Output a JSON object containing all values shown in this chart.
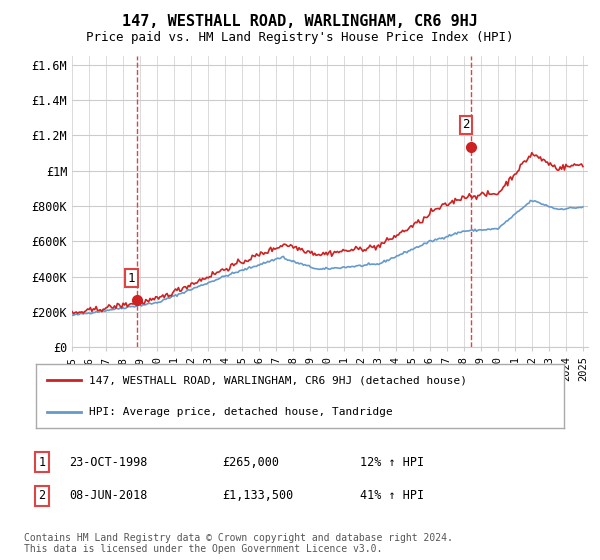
{
  "title": "147, WESTHALL ROAD, WARLINGHAM, CR6 9HJ",
  "subtitle": "Price paid vs. HM Land Registry's House Price Index (HPI)",
  "ylabel_ticks": [
    "£0",
    "£200K",
    "£400K",
    "£600K",
    "£800K",
    "£1M",
    "£1.2M",
    "£1.4M",
    "£1.6M"
  ],
  "ytick_values": [
    0,
    200000,
    400000,
    600000,
    800000,
    1000000,
    1200000,
    1400000,
    1600000
  ],
  "ylim": [
    0,
    1650000
  ],
  "sale1_year": 1998.8,
  "sale1_price": 265000,
  "sale1_label": "1",
  "sale1_date": "23-OCT-1998",
  "sale1_pct": "12%",
  "sale2_year": 2018.45,
  "sale2_price": 1133500,
  "sale2_label": "2",
  "sale2_date": "08-JUN-2018",
  "sale2_pct": "41%",
  "hpi_color": "#6699cc",
  "price_color": "#cc2222",
  "marker_color": "#cc2222",
  "vline_color": "#dd4444",
  "grid_color": "#cccccc",
  "bg_color": "#ffffff",
  "legend_label_price": "147, WESTHALL ROAD, WARLINGHAM, CR6 9HJ (detached house)",
  "legend_label_hpi": "HPI: Average price, detached house, Tandridge",
  "footnote": "Contains HM Land Registry data © Crown copyright and database right 2024.\nThis data is licensed under the Open Government Licence v3.0.",
  "x_years": [
    1995,
    1996,
    1997,
    1998,
    1999,
    2000,
    2001,
    2002,
    2003,
    2004,
    2005,
    2006,
    2007,
    2008,
    2009,
    2010,
    2011,
    2012,
    2013,
    2014,
    2015,
    2016,
    2017,
    2018,
    2019,
    2020,
    2021,
    2022,
    2023,
    2024,
    2025
  ]
}
